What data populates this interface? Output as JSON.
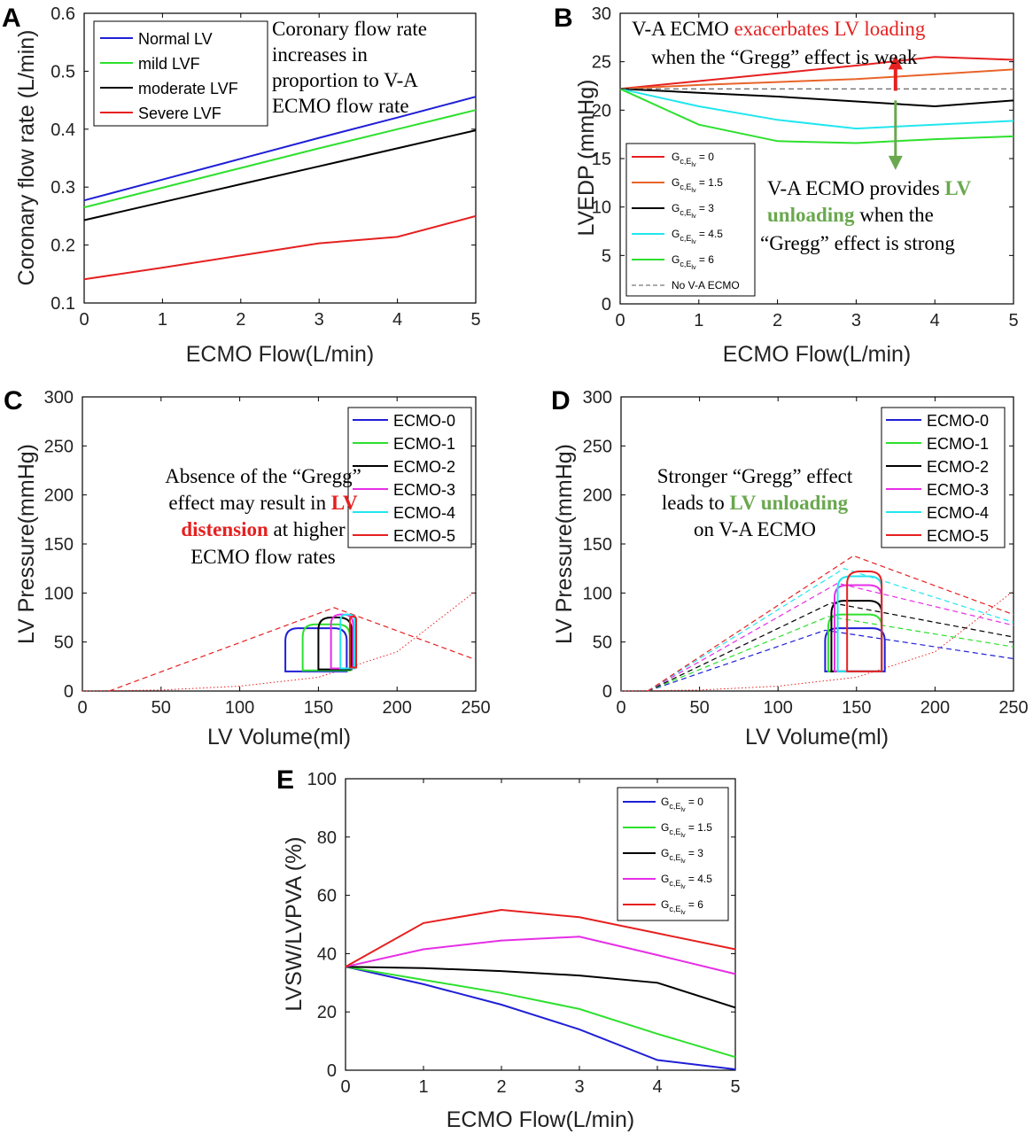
{
  "colors": {
    "blue": "#1f1fd6",
    "green": "#2de02d",
    "black": "#000000",
    "red": "#e62020",
    "orange": "#e8642a",
    "cyan": "#22e6ee",
    "magenta": "#e62ee6",
    "darkgreen": "#6aa84f",
    "gray": "#555555"
  },
  "chart_data": [
    {
      "panel": "A",
      "type": "line",
      "xlabel": "ECMO Flow(L/min)",
      "ylabel": "Coronary flow rate (L/min)",
      "xlim": [
        0,
        5
      ],
      "ylim": [
        0.1,
        0.6
      ],
      "xticks": [
        "0",
        "1",
        "2",
        "3",
        "4",
        "5"
      ],
      "yticks": [
        "0.1",
        "0.2",
        "0.3",
        "0.4",
        "0.5",
        "0.6"
      ],
      "x": [
        0,
        1,
        2,
        3,
        4,
        5
      ],
      "series": [
        {
          "name": "Normal LV",
          "color": "blue",
          "values": [
            0.277,
            0.313,
            0.349,
            0.385,
            0.42,
            0.456
          ]
        },
        {
          "name": "mild LVF",
          "color": "green",
          "values": [
            0.265,
            0.299,
            0.333,
            0.367,
            0.4,
            0.433
          ]
        },
        {
          "name": "moderate LVF",
          "color": "black",
          "values": [
            0.243,
            0.274,
            0.305,
            0.336,
            0.367,
            0.398
          ]
        },
        {
          "name": "Severe LVF",
          "color": "red",
          "values": [
            0.141,
            0.161,
            0.182,
            0.203,
            0.214,
            0.25
          ]
        }
      ],
      "legend": "top-left",
      "annotation": [
        "Coronary flow rate",
        "increases in",
        "proportion to V-A",
        "ECMO flow rate"
      ]
    },
    {
      "panel": "B",
      "type": "line",
      "xlabel": "ECMO Flow(L/min)",
      "ylabel": "LVEDP (mmHg)",
      "xlim": [
        0,
        5
      ],
      "ylim": [
        0,
        30
      ],
      "xticks": [
        "0",
        "1",
        "2",
        "3",
        "4",
        "5"
      ],
      "yticks": [
        "0",
        "5",
        "10",
        "15",
        "20",
        "25",
        "30"
      ],
      "x": [
        0,
        1,
        2,
        3,
        4,
        5
      ],
      "series": [
        {
          "name": "G_{c,E_lv} = 0",
          "color": "red",
          "values": [
            22.2,
            23.0,
            23.8,
            24.6,
            25.5,
            25.2
          ]
        },
        {
          "name": "G_{c,E_lv} = 1.5",
          "color": "orange",
          "values": [
            22.2,
            22.6,
            22.9,
            23.2,
            23.7,
            24.2
          ]
        },
        {
          "name": "G_{c,E_lv} = 3",
          "color": "black",
          "values": [
            22.2,
            21.8,
            21.4,
            20.9,
            20.4,
            21.0
          ]
        },
        {
          "name": "G_{c,E_lv} = 4.5",
          "color": "cyan",
          "values": [
            22.2,
            20.4,
            19.0,
            18.1,
            18.5,
            18.9
          ]
        },
        {
          "name": "G_{c,E_lv} = 6",
          "color": "green",
          "values": [
            22.2,
            18.5,
            16.8,
            16.6,
            17.0,
            17.3
          ]
        },
        {
          "name": "No V-A ECMO",
          "color": "gray",
          "dashed": true,
          "values": [
            22.2,
            22.2,
            22.2,
            22.2,
            22.2,
            22.2
          ]
        }
      ],
      "legend_labels": [
        {
          "pre": "G",
          "sub": "c,E",
          "subsub": "lv",
          "post": " = 0"
        },
        {
          "pre": "G",
          "sub": "c,E",
          "subsub": "lv",
          "post": " = 1.5"
        },
        {
          "pre": "G",
          "sub": "c,E",
          "subsub": "lv",
          "post": " = 3"
        },
        {
          "pre": "G",
          "sub": "c,E",
          "subsub": "lv",
          "post": " = 4.5"
        },
        {
          "pre": "G",
          "sub": "c,E",
          "subsub": "lv",
          "post": " = 6"
        },
        {
          "pre": "No V-A ECMO",
          "sub": "",
          "subsub": "",
          "post": ""
        }
      ],
      "legend": "bottom-left",
      "annotation_top": {
        "a": "V-A ECMO ",
        "b": "exacerbates LV loading",
        "c": "when the “Gregg” effect is weak"
      },
      "annotation_bottom": {
        "a": "V-A ECMO provides ",
        "b": "LV",
        "c": "unloading",
        "d": " when the",
        "e": "“Gregg” effect is strong"
      },
      "arrows": {
        "x": 3.5,
        "up": [
          22.0,
          25.3
        ],
        "down": [
          21.0,
          14.0
        ]
      }
    },
    {
      "panel": "C",
      "type": "line",
      "xlabel": "LV Volume(ml)",
      "ylabel": "LV Pressure(mmHg)",
      "xlim": [
        0,
        250
      ],
      "ylim": [
        0,
        300
      ],
      "xticks": [
        "0",
        "50",
        "100",
        "150",
        "200",
        "250"
      ],
      "yticks": [
        "0",
        "50",
        "100",
        "150",
        "200",
        "250",
        "300"
      ],
      "series": [
        {
          "name": "ECMO-0",
          "color": "blue",
          "loop": {
            "vmin": 129,
            "vmax": 168,
            "pmin": 20,
            "pmax": 64
          }
        },
        {
          "name": "ECMO-1",
          "color": "green",
          "loop": {
            "vmin": 140,
            "vmax": 170,
            "pmin": 21,
            "pmax": 68
          }
        },
        {
          "name": "ECMO-2",
          "color": "black",
          "loop": {
            "vmin": 150,
            "vmax": 171,
            "pmin": 22,
            "pmax": 75
          }
        },
        {
          "name": "ECMO-3",
          "color": "magenta",
          "loop": {
            "vmin": 158,
            "vmax": 172,
            "pmin": 23,
            "pmax": 78
          }
        },
        {
          "name": "ECMO-4",
          "color": "cyan",
          "loop": {
            "vmin": 164,
            "vmax": 173,
            "pmin": 23,
            "pmax": 78
          }
        },
        {
          "name": "ECMO-5",
          "color": "red",
          "loop": {
            "vmin": 170,
            "vmax": 174,
            "pmin": 24,
            "pmax": 76
          }
        }
      ],
      "espvr": [
        {
          "color": "red",
          "points": [
            [
              17,
              0
            ],
            [
              160,
              85
            ],
            [
              250,
              32
            ]
          ]
        }
      ],
      "edpvr": {
        "color": "red",
        "points": [
          [
            0,
            0
          ],
          [
            50,
            1
          ],
          [
            100,
            5
          ],
          [
            150,
            14
          ],
          [
            200,
            40
          ],
          [
            250,
            102
          ]
        ]
      },
      "legend": "top-right",
      "annotation": {
        "a": "Absence of the “Gregg”",
        "b": "effect may result in ",
        "c": "LV",
        "d": "distension",
        "e": " at higher",
        "f": "ECMO flow rates"
      }
    },
    {
      "panel": "D",
      "type": "line",
      "xlabel": "LV Volume(ml)",
      "ylabel": "LV Pressure(mmHg)",
      "xlim": [
        0,
        250
      ],
      "ylim": [
        0,
        300
      ],
      "xticks": [
        "0",
        "50",
        "100",
        "150",
        "200",
        "250"
      ],
      "yticks": [
        "0",
        "50",
        "100",
        "150",
        "200",
        "250",
        "300"
      ],
      "series": [
        {
          "name": "ECMO-0",
          "color": "blue",
          "loop": {
            "vmin": 130,
            "vmax": 168,
            "pmin": 20,
            "pmax": 64
          }
        },
        {
          "name": "ECMO-1",
          "color": "green",
          "loop": {
            "vmin": 132,
            "vmax": 166,
            "pmin": 20,
            "pmax": 78
          }
        },
        {
          "name": "ECMO-2",
          "color": "black",
          "loop": {
            "vmin": 134,
            "vmax": 166,
            "pmin": 20,
            "pmax": 92
          }
        },
        {
          "name": "ECMO-3",
          "color": "magenta",
          "loop": {
            "vmin": 136,
            "vmax": 166,
            "pmin": 20,
            "pmax": 108
          }
        },
        {
          "name": "ECMO-4",
          "color": "cyan",
          "loop": {
            "vmin": 138,
            "vmax": 166,
            "pmin": 20,
            "pmax": 117
          }
        },
        {
          "name": "ECMO-5",
          "color": "red",
          "loop": {
            "vmin": 144,
            "vmax": 166,
            "pmin": 20,
            "pmax": 122
          }
        }
      ],
      "espvr": [
        {
          "color": "blue",
          "points": [
            [
              17,
              0
            ],
            [
              130,
              62
            ],
            [
              250,
              33
            ]
          ]
        },
        {
          "color": "green",
          "points": [
            [
              17,
              0
            ],
            [
              132,
              76
            ],
            [
              250,
              45
            ]
          ]
        },
        {
          "color": "black",
          "points": [
            [
              17,
              0
            ],
            [
              134,
              90
            ],
            [
              250,
              55
            ]
          ]
        },
        {
          "color": "magenta",
          "points": [
            [
              17,
              0
            ],
            [
              138,
              110
            ],
            [
              250,
              67
            ]
          ]
        },
        {
          "color": "cyan",
          "points": [
            [
              17,
              0
            ],
            [
              142,
              125
            ],
            [
              250,
              70
            ]
          ]
        },
        {
          "color": "red",
          "points": [
            [
              17,
              0
            ],
            [
              148,
              138
            ],
            [
              250,
              78
            ]
          ]
        }
      ],
      "edpvr": {
        "color": "red",
        "points": [
          [
            0,
            0
          ],
          [
            50,
            1
          ],
          [
            100,
            5
          ],
          [
            150,
            14
          ],
          [
            200,
            40
          ],
          [
            250,
            102
          ]
        ]
      },
      "legend": "top-right",
      "annotation": {
        "a": "Stronger “Gregg” effect",
        "b": "leads to ",
        "c": "LV unloading",
        "d": "on V-A ECMO"
      }
    },
    {
      "panel": "E",
      "type": "line",
      "xlabel": "ECMO Flow(L/min)",
      "ylabel": "LVSW/LVPVA (%)",
      "xlim": [
        0,
        5
      ],
      "ylim": [
        0,
        100
      ],
      "xticks": [
        "0",
        "1",
        "2",
        "3",
        "4",
        "5"
      ],
      "yticks": [
        "0",
        "20",
        "40",
        "60",
        "80",
        "100"
      ],
      "x": [
        0,
        1,
        2,
        3,
        4,
        5
      ],
      "series": [
        {
          "name": "G_{c,E_lv} = 0",
          "color": "blue",
          "values": [
            35.5,
            29.5,
            22.5,
            14.0,
            3.5,
            0.3
          ]
        },
        {
          "name": "G_{c,E_lv} = 1.5",
          "color": "green",
          "values": [
            35.5,
            31.0,
            26.5,
            21.0,
            12.5,
            4.5
          ]
        },
        {
          "name": "G_{c,E_lv} = 3",
          "color": "black",
          "values": [
            35.5,
            35.0,
            34.0,
            32.5,
            30.0,
            21.5
          ]
        },
        {
          "name": "G_{c,E_lv} = 4.5",
          "color": "magenta",
          "values": [
            35.5,
            41.5,
            44.5,
            45.8,
            39.5,
            33.0
          ]
        },
        {
          "name": "G_{c,E_lv} = 6",
          "color": "red",
          "values": [
            35.5,
            50.5,
            55.0,
            52.5,
            47.0,
            41.5
          ]
        }
      ],
      "legend_labels": [
        {
          "pre": "G",
          "sub": "c,E",
          "subsub": "lv",
          "post": " = 0"
        },
        {
          "pre": "G",
          "sub": "c,E",
          "subsub": "lv",
          "post": " = 1.5"
        },
        {
          "pre": "G",
          "sub": "c,E",
          "subsub": "lv",
          "post": " = 3"
        },
        {
          "pre": "G",
          "sub": "c,E",
          "subsub": "lv",
          "post": " = 4.5"
        },
        {
          "pre": "G",
          "sub": "c,E",
          "subsub": "lv",
          "post": " = 6"
        }
      ],
      "legend": "top-right"
    }
  ]
}
